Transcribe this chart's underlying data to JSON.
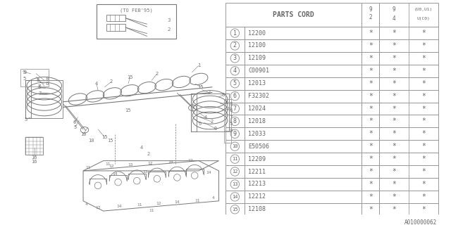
{
  "background_color": "#ffffff",
  "table_header": "PARTS CORD",
  "rows": [
    [
      "1",
      "12200"
    ],
    [
      "2",
      "12100"
    ],
    [
      "3",
      "12109"
    ],
    [
      "4",
      "C00901"
    ],
    [
      "5",
      "12013"
    ],
    [
      "6",
      "F32302"
    ],
    [
      "7",
      "12024"
    ],
    [
      "8",
      "12018"
    ],
    [
      "9",
      "12033"
    ],
    [
      "10",
      "E50506"
    ],
    [
      "11",
      "12209"
    ],
    [
      "12",
      "12211"
    ],
    [
      "13",
      "12213"
    ],
    [
      "14",
      "12212"
    ],
    [
      "15",
      "12108"
    ]
  ],
  "col1_lines": [
    "9",
    "2"
  ],
  "col2_lines": [
    "9",
    "(U0,U1)",
    "4",
    "U(C0)"
  ],
  "watermark": "A010000062",
  "diagram_note": "(TO FEB'95)",
  "dc": "#777777",
  "lc": "#999999",
  "tc": "#666666"
}
